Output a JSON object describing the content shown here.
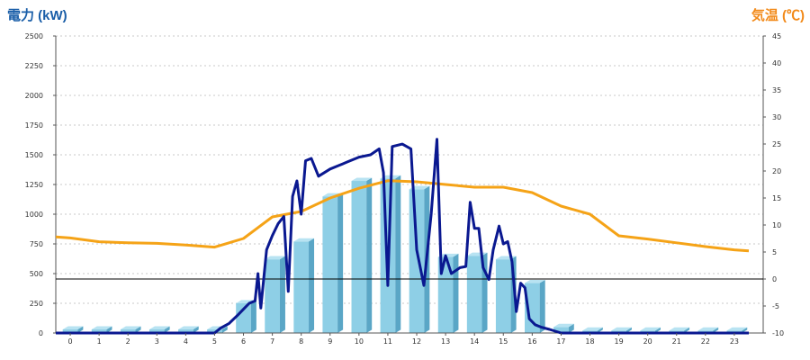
{
  "chart_data": {
    "type": "bar+line",
    "left_axis_title": "電力 (kW)",
    "right_axis_title": "気温 (℃)",
    "left_title_color": "#1a5ea8",
    "right_title_color": "#f28a1a",
    "categories": [
      "0",
      "1",
      "2",
      "3",
      "4",
      "5",
      "6",
      "7",
      "8",
      "9",
      "10",
      "11",
      "12",
      "13",
      "14",
      "15",
      "16",
      "17",
      "18",
      "19",
      "20",
      "21",
      "22",
      "23"
    ],
    "left_ylim": [
      0,
      2500
    ],
    "left_ticks": [
      "0",
      "250",
      "500",
      "750",
      "1000",
      "1250",
      "1500",
      "1750",
      "2000",
      "2250",
      "2500"
    ],
    "right_ylim": [
      -10,
      45
    ],
    "right_ticks": [
      "-10",
      "-5",
      "0",
      "5",
      "10",
      "15",
      "20",
      "25",
      "30",
      "35",
      "40",
      "45"
    ],
    "grid": true,
    "colors": {
      "bar": "#8ecfe6",
      "bar_side": "#5aa6c6",
      "bar_top": "#b8e3f2",
      "power_line": "#0a1890",
      "temp_line": "#f5a317",
      "zero_line": "#000000"
    },
    "bar_series": {
      "name": "",
      "values": [
        30,
        30,
        30,
        30,
        30,
        30,
        250,
        620,
        770,
        1150,
        1280,
        1300,
        1210,
        640,
        650,
        620,
        420,
        50,
        20,
        20,
        20,
        20,
        20,
        20
      ]
    },
    "power_line": {
      "name": "",
      "points": [
        [
          -0.5,
          0
        ],
        [
          5.0,
          0
        ],
        [
          5.2,
          40
        ],
        [
          5.5,
          80
        ],
        [
          5.8,
          150
        ],
        [
          6.0,
          200
        ],
        [
          6.2,
          250
        ],
        [
          6.4,
          270
        ],
        [
          6.5,
          500
        ],
        [
          6.6,
          210
        ],
        [
          6.8,
          700
        ],
        [
          7.0,
          820
        ],
        [
          7.2,
          920
        ],
        [
          7.4,
          980
        ],
        [
          7.55,
          350
        ],
        [
          7.7,
          1150
        ],
        [
          7.85,
          1280
        ],
        [
          8.0,
          1000
        ],
        [
          8.15,
          1450
        ],
        [
          8.35,
          1470
        ],
        [
          8.6,
          1320
        ],
        [
          9.0,
          1380
        ],
        [
          9.3,
          1410
        ],
        [
          9.6,
          1440
        ],
        [
          10.0,
          1480
        ],
        [
          10.4,
          1500
        ],
        [
          10.7,
          1550
        ],
        [
          10.85,
          1350
        ],
        [
          11.0,
          400
        ],
        [
          11.15,
          1570
        ],
        [
          11.5,
          1590
        ],
        [
          11.8,
          1550
        ],
        [
          12.0,
          700
        ],
        [
          12.25,
          400
        ],
        [
          12.5,
          1000
        ],
        [
          12.7,
          1630
        ],
        [
          12.85,
          500
        ],
        [
          13.0,
          650
        ],
        [
          13.2,
          500
        ],
        [
          13.5,
          550
        ],
        [
          13.7,
          560
        ],
        [
          13.85,
          1100
        ],
        [
          14.0,
          880
        ],
        [
          14.15,
          880
        ],
        [
          14.3,
          550
        ],
        [
          14.5,
          450
        ],
        [
          14.65,
          700
        ],
        [
          14.85,
          900
        ],
        [
          15.0,
          750
        ],
        [
          15.15,
          770
        ],
        [
          15.3,
          600
        ],
        [
          15.45,
          180
        ],
        [
          15.6,
          420
        ],
        [
          15.75,
          380
        ],
        [
          15.9,
          120
        ],
        [
          16.1,
          70
        ],
        [
          16.3,
          50
        ],
        [
          16.6,
          30
        ],
        [
          17.0,
          0
        ],
        [
          23.5,
          0
        ]
      ]
    },
    "temp_line": {
      "name": "",
      "points": [
        [
          -0.5,
          7.8
        ],
        [
          0,
          7.6
        ],
        [
          1,
          6.9
        ],
        [
          2,
          6.7
        ],
        [
          3,
          6.6
        ],
        [
          4,
          6.3
        ],
        [
          5,
          5.9
        ],
        [
          6,
          7.5
        ],
        [
          7,
          11.5
        ],
        [
          8,
          12.5
        ],
        [
          9,
          15.0
        ],
        [
          10,
          16.8
        ],
        [
          11,
          18.2
        ],
        [
          12,
          18.0
        ],
        [
          13,
          17.5
        ],
        [
          14,
          17.0
        ],
        [
          15,
          17.0
        ],
        [
          16,
          16.0
        ],
        [
          17,
          13.5
        ],
        [
          18,
          12.0
        ],
        [
          19,
          8.0
        ],
        [
          20,
          7.4
        ],
        [
          21,
          6.7
        ],
        [
          22,
          6.0
        ],
        [
          23,
          5.4
        ],
        [
          23.5,
          5.2
        ]
      ]
    }
  }
}
